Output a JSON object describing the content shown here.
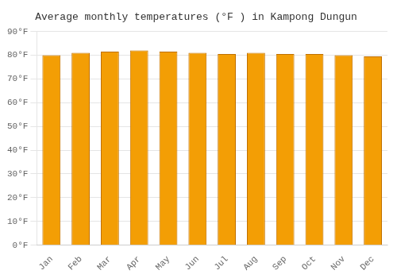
{
  "chart_data": {
    "type": "bar",
    "title": "Average monthly temperatures (°F ) in Kampong Dungun",
    "categories": [
      "Jan",
      "Feb",
      "Mar",
      "Apr",
      "May",
      "Jun",
      "Jul",
      "Aug",
      "Sep",
      "Oct",
      "Nov",
      "Dec"
    ],
    "values": [
      80,
      81,
      81.5,
      82,
      81.5,
      81,
      80.5,
      81,
      80.5,
      80.5,
      80,
      79.5
    ],
    "color": "#F39E05",
    "ylim": [
      0,
      90
    ],
    "yticks": [
      {
        "value": 0,
        "label": "0°F"
      },
      {
        "value": 10,
        "label": "10°F"
      },
      {
        "value": 20,
        "label": "20°F"
      },
      {
        "value": 30,
        "label": "30°F"
      },
      {
        "value": 40,
        "label": "40°F"
      },
      {
        "value": 50,
        "label": "50°F"
      },
      {
        "value": 60,
        "label": "60°F"
      },
      {
        "value": 70,
        "label": "70°F"
      },
      {
        "value": 80,
        "label": "80°F"
      },
      {
        "value": 90,
        "label": "90°F"
      }
    ],
    "grid": true
  }
}
